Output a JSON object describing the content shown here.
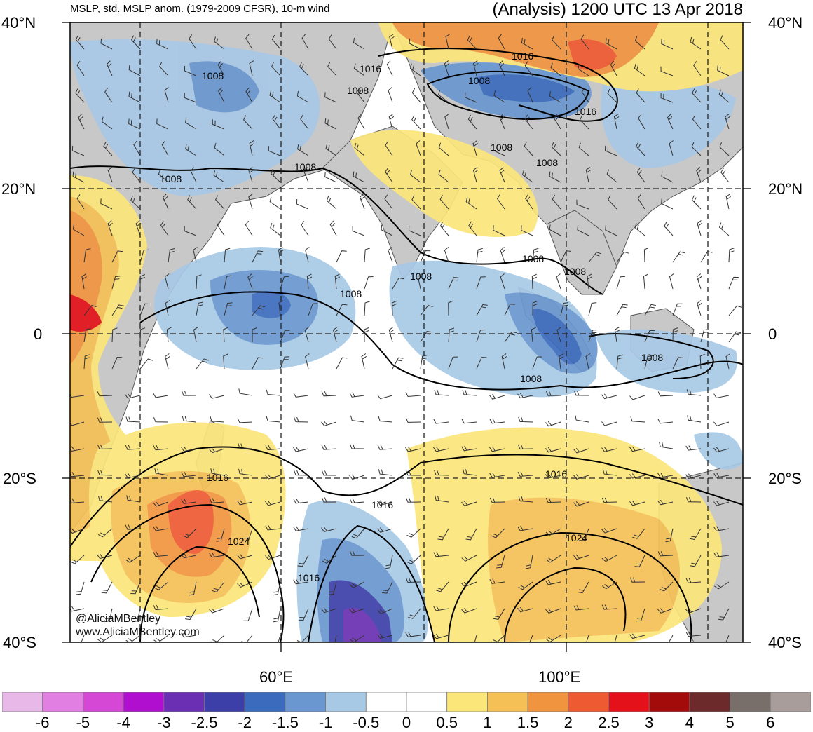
{
  "header": {
    "subtitle": "MSLP, std. MSLP anom. (1979-2009 CFSR), 10-m wind",
    "title": "(Analysis) 1200 UTC 13 Apr 2018"
  },
  "axes": {
    "lat_labels_left": [
      "40°N",
      "20°N",
      "0",
      "20°S",
      "40°S"
    ],
    "lat_labels_right": [
      "40°N",
      "20°N",
      "0",
      "20°S",
      "40°S"
    ],
    "lon_labels": [
      "60°E",
      "100°E"
    ]
  },
  "contour_labels": [
    "1008",
    "1008",
    "1008",
    "1008",
    "1008",
    "1008",
    "1008",
    "1008",
    "1008",
    "1008",
    "1008",
    "1016",
    "1016",
    "1016",
    "1016",
    "1016",
    "1016",
    "1024",
    "1024"
  ],
  "credits": {
    "twitter": "@AliciaMBentley",
    "website": "www.AliciaMBentley.com"
  },
  "colorbar": {
    "colors": [
      "#e8b9e8",
      "#e27fe2",
      "#d547d5",
      "#b10fcf",
      "#6a2fb3",
      "#3c3fa8",
      "#3b6bbd",
      "#6a97cf",
      "#a8c9e6",
      "#ffffff",
      "#ffffff",
      "#fbe67a",
      "#f5c157",
      "#f19440",
      "#ee5a32",
      "#e4111a",
      "#a30b0b",
      "#6c2a2a",
      "#786f6b",
      "#a89d9a"
    ],
    "labels": [
      "-6",
      "-5",
      "-4",
      "-3",
      "-2.5",
      "-2",
      "-1.5",
      "-1",
      "-0.5",
      "0",
      "0.5",
      "1",
      "1.5",
      "2",
      "2.5",
      "3",
      "4",
      "5",
      "6"
    ]
  }
}
